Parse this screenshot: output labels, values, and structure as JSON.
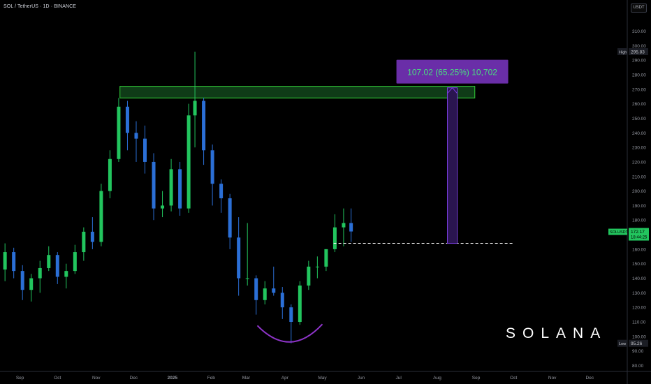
{
  "header": {
    "symbol_title": "SOL / TetherUS · 1D · BINANCE",
    "currency": "USDT"
  },
  "watermark": {
    "brand": "SOLANA"
  },
  "annotation": {
    "measure_label": "107.02 (65.25%) 10,702",
    "box_color": "#6a2ea8",
    "arrow_color": "#7b3fe4"
  },
  "price_axis": {
    "ticks": [
      "310.00",
      "300.00",
      "290.00",
      "280.00",
      "270.00",
      "260.00",
      "250.00",
      "240.00",
      "230.00",
      "220.00",
      "210.00",
      "200.00",
      "190.00",
      "180.00",
      "170.00",
      "160.00",
      "150.00",
      "140.00",
      "130.00",
      "120.00",
      "110.00",
      "100.00",
      "90.00",
      "80.00"
    ],
    "high_label": "High",
    "high_value": "295.83",
    "low_label": "Low",
    "low_value": "95.26",
    "symbol_label": "SOLUSDT",
    "last_price": "172.17",
    "countdown": "18:44:25"
  },
  "time_axis": {
    "ticks": [
      "Sep",
      "Oct",
      "Nov",
      "Dec",
      "2025",
      "Feb",
      "Mar",
      "Apr",
      "May",
      "Jun",
      "Jul",
      "Aug",
      "Sep",
      "Oct",
      "Nov",
      "Dec"
    ]
  },
  "colors": {
    "up": "#22c55e",
    "down": "#2b6fd6",
    "zone_fill": "#0f3b17",
    "zone_stroke": "#33d63a",
    "last_price_bg": "#22c55e",
    "arc": "#8e34c9"
  },
  "chart_data": {
    "type": "candlestick",
    "symbol": "SOL / TetherUS",
    "interval": "1D",
    "exchange": "BINANCE",
    "ylim": [
      80,
      310
    ],
    "x_range": [
      "2024-08-16",
      "2025-12-31"
    ],
    "series": [
      {
        "date": "2024-08-20",
        "open": 146,
        "high": 164,
        "low": 138,
        "close": 158
      },
      {
        "date": "2024-08-27",
        "open": 158,
        "high": 161,
        "low": 140,
        "close": 145
      },
      {
        "date": "2024-09-03",
        "open": 145,
        "high": 149,
        "low": 125,
        "close": 132
      },
      {
        "date": "2024-09-10",
        "open": 132,
        "high": 143,
        "low": 124,
        "close": 140
      },
      {
        "date": "2024-09-17",
        "open": 140,
        "high": 152,
        "low": 130,
        "close": 147
      },
      {
        "date": "2024-09-24",
        "open": 147,
        "high": 162,
        "low": 145,
        "close": 156
      },
      {
        "date": "2024-10-01",
        "open": 156,
        "high": 158,
        "low": 136,
        "close": 141
      },
      {
        "date": "2024-10-08",
        "open": 141,
        "high": 150,
        "low": 133,
        "close": 145
      },
      {
        "date": "2024-10-15",
        "open": 145,
        "high": 163,
        "low": 143,
        "close": 158
      },
      {
        "date": "2024-10-22",
        "open": 158,
        "high": 175,
        "low": 152,
        "close": 172
      },
      {
        "date": "2024-10-29",
        "open": 172,
        "high": 182,
        "low": 160,
        "close": 165
      },
      {
        "date": "2024-11-05",
        "open": 165,
        "high": 205,
        "low": 162,
        "close": 200
      },
      {
        "date": "2024-11-12",
        "open": 200,
        "high": 228,
        "low": 195,
        "close": 222
      },
      {
        "date": "2024-11-19",
        "open": 222,
        "high": 264,
        "low": 220,
        "close": 258
      },
      {
        "date": "2024-11-26",
        "open": 258,
        "high": 262,
        "low": 228,
        "close": 240
      },
      {
        "date": "2024-12-03",
        "open": 240,
        "high": 248,
        "low": 220,
        "close": 236
      },
      {
        "date": "2024-12-10",
        "open": 236,
        "high": 245,
        "low": 212,
        "close": 220
      },
      {
        "date": "2024-12-17",
        "open": 220,
        "high": 226,
        "low": 180,
        "close": 188
      },
      {
        "date": "2024-12-24",
        "open": 188,
        "high": 200,
        "low": 182,
        "close": 190
      },
      {
        "date": "2024-12-31",
        "open": 190,
        "high": 222,
        "low": 186,
        "close": 215
      },
      {
        "date": "2025-01-07",
        "open": 215,
        "high": 220,
        "low": 183,
        "close": 188
      },
      {
        "date": "2025-01-14",
        "open": 188,
        "high": 260,
        "low": 185,
        "close": 252
      },
      {
        "date": "2025-01-19",
        "open": 252,
        "high": 295.83,
        "low": 230,
        "close": 262
      },
      {
        "date": "2025-01-26",
        "open": 262,
        "high": 264,
        "low": 218,
        "close": 228
      },
      {
        "date": "2025-02-02",
        "open": 228,
        "high": 232,
        "low": 190,
        "close": 205
      },
      {
        "date": "2025-02-09",
        "open": 205,
        "high": 208,
        "low": 185,
        "close": 195
      },
      {
        "date": "2025-02-16",
        "open": 195,
        "high": 198,
        "low": 160,
        "close": 168
      },
      {
        "date": "2025-02-23",
        "open": 168,
        "high": 182,
        "low": 128,
        "close": 140
      },
      {
        "date": "2025-03-02",
        "open": 140,
        "high": 178,
        "low": 135,
        "close": 140
      },
      {
        "date": "2025-03-09",
        "open": 140,
        "high": 142,
        "low": 115,
        "close": 125
      },
      {
        "date": "2025-03-16",
        "open": 125,
        "high": 138,
        "low": 122,
        "close": 133
      },
      {
        "date": "2025-03-23",
        "open": 133,
        "high": 148,
        "low": 128,
        "close": 130
      },
      {
        "date": "2025-03-30",
        "open": 130,
        "high": 134,
        "low": 112,
        "close": 120
      },
      {
        "date": "2025-04-06",
        "open": 120,
        "high": 122,
        "low": 95.26,
        "close": 110
      },
      {
        "date": "2025-04-13",
        "open": 110,
        "high": 138,
        "low": 108,
        "close": 135
      },
      {
        "date": "2025-04-20",
        "open": 135,
        "high": 152,
        "low": 132,
        "close": 148
      },
      {
        "date": "2025-04-27",
        "open": 148,
        "high": 155,
        "low": 140,
        "close": 148
      },
      {
        "date": "2025-05-04",
        "open": 148,
        "high": 160,
        "low": 145,
        "close": 160
      },
      {
        "date": "2025-05-11",
        "open": 160,
        "high": 184,
        "low": 158,
        "close": 175
      },
      {
        "date": "2025-05-18",
        "open": 175,
        "high": 188,
        "low": 162,
        "close": 178
      },
      {
        "date": "2025-05-24",
        "open": 178,
        "high": 188,
        "low": 165,
        "close": 172.17
      }
    ],
    "resistance_zone": {
      "from": "2024-11-20",
      "to": "2025-08-31",
      "low": 264,
      "high": 272
    },
    "support_line": {
      "from": "2025-05-10",
      "to": "2025-10-01",
      "value": 164
    },
    "measure": {
      "date": "2025-08-13",
      "from": 164,
      "to": 271.02,
      "change": 107.02,
      "percent": 65.25,
      "ticks": 10702
    },
    "arc": {
      "from": "2025-03-10",
      "to": "2025-05-01",
      "bottom": 95
    }
  }
}
